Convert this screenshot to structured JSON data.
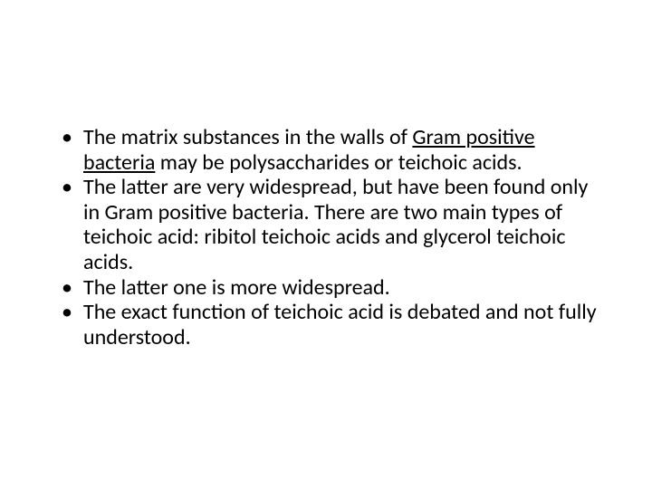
{
  "slide": {
    "background_color": "#ffffff",
    "text_color": "#000000",
    "font_family": "Calibri",
    "font_size_pt": 24,
    "line_height": 1.15,
    "bullets": [
      {
        "pre": "The matrix substances in the walls of ",
        "link": "Gram positive bacteria",
        "post": " may be polysaccharides or teichoic acids."
      },
      {
        "pre": "The latter are very widespread, but have been found only in Gram positive bacteria. There are two main types of teichoic acid: ribitol teichoic acids and glycerol teichoic acids.",
        "link": "",
        "post": ""
      },
      {
        "pre": "The latter one is more widespread.",
        "link": "",
        "post": ""
      },
      {
        "pre": "The exact function of teichoic acid is debated and not fully understood.",
        "link": "",
        "post": ""
      }
    ]
  }
}
